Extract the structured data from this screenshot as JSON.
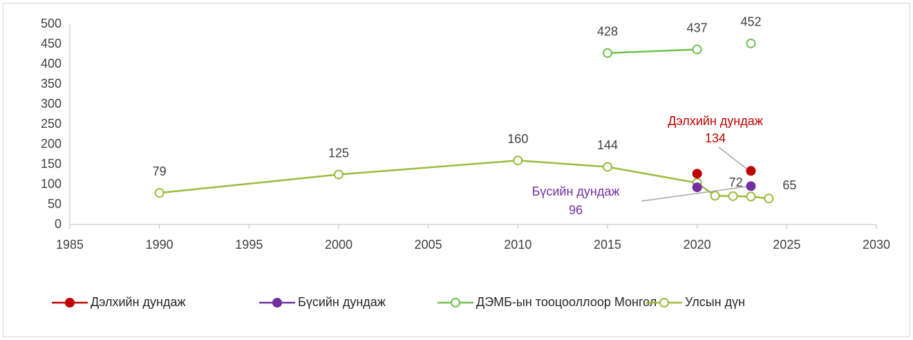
{
  "chart_data": {
    "type": "line",
    "xlim": [
      1985,
      2030
    ],
    "xticks": [
      1985,
      1990,
      1995,
      2000,
      2005,
      2010,
      2015,
      2020,
      2025,
      2030
    ],
    "ylim": [
      0,
      500
    ],
    "yticks": [
      0,
      50,
      100,
      150,
      200,
      250,
      300,
      350,
      400,
      450,
      500
    ],
    "grid": false,
    "legend": "bottom",
    "series": [
      {
        "name": "Дэлхийн дундаж",
        "color": "#c00000",
        "marker": "filled",
        "x": [
          2020,
          2021,
          2022,
          2023
        ],
        "values": [
          127,
          null,
          null,
          134
        ],
        "labeled_points": [
          3
        ],
        "annotation": "Дэлхийн дундаж"
      },
      {
        "name": "Бүсийн дундаж",
        "color": "#7030a0",
        "marker": "filled",
        "x": [
          2020,
          2021,
          2022,
          2023
        ],
        "values": [
          93,
          null,
          null,
          96
        ],
        "labeled_points": [
          3
        ],
        "annotation": "Бүсийн дундаж"
      },
      {
        "name": "ДЭМБ-ын тооцооллоор Монгол",
        "color": "#70c050",
        "marker": "open",
        "x": [
          2015,
          2020,
          2021,
          2022,
          2023
        ],
        "values": [
          428,
          437,
          null,
          null,
          452
        ],
        "labeled_points": [
          0,
          1,
          4
        ]
      },
      {
        "name": "Улсын дүн",
        "color": "#9bbb3b",
        "marker": "open",
        "x": [
          1990,
          2000,
          2010,
          2015,
          2020,
          2021,
          2022,
          2023,
          2024
        ],
        "values": [
          79,
          125,
          160,
          144,
          104,
          72,
          71,
          70,
          65
        ],
        "labeled_points": [
          0,
          1,
          2,
          3,
          5,
          8
        ]
      }
    ]
  }
}
